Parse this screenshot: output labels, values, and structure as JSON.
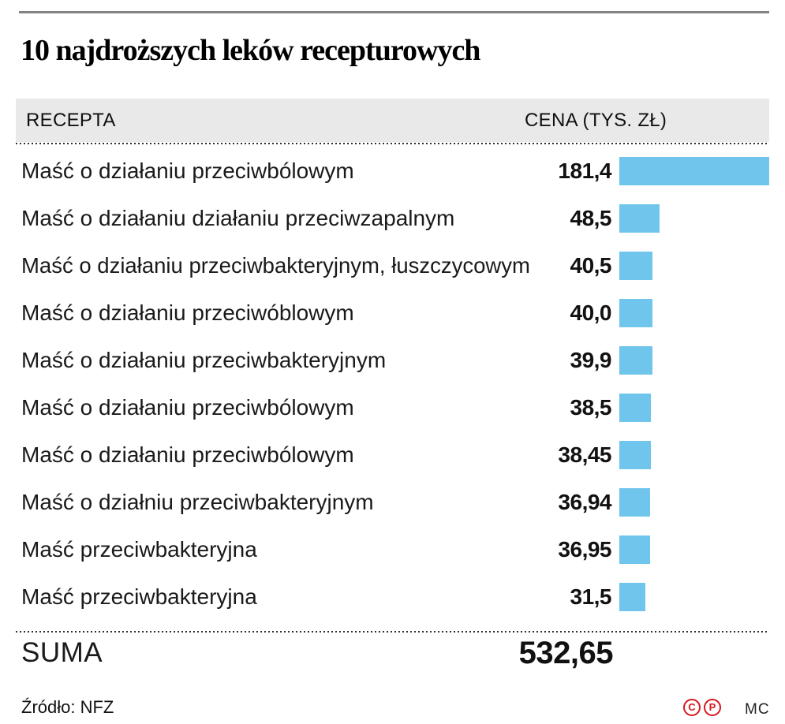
{
  "title": "10 najdroższych leków recepturowych",
  "table": {
    "col_recepta": "RECEPTA",
    "col_cena": "CENA (TYS. ZŁ)",
    "rows": [
      {
        "label": "Maść o działaniu przeciwbólowym",
        "value": "181,4",
        "num": 181.4
      },
      {
        "label": "Maść o działaniu działaniu przeciwzapalnym",
        "value": "48,5",
        "num": 48.5
      },
      {
        "label": "Maść o działaniu przeciwbakteryjnym, łuszczycowym",
        "value": "40,5",
        "num": 40.5
      },
      {
        "label": "Maść o działaniu przeciwóblowym",
        "value": "40,0",
        "num": 40.0
      },
      {
        "label": "Maść o działaniu przeciwbakteryjnym",
        "value": "39,9",
        "num": 39.9
      },
      {
        "label": "Maść o działaniu przeciwbólowym",
        "value": "38,5",
        "num": 38.5
      },
      {
        "label": "Maść o działaniu przeciwbólowym",
        "value": "38,45",
        "num": 38.45
      },
      {
        "label": "Maść o działniu przeciwbakteryjnym",
        "value": "36,94",
        "num": 36.94
      },
      {
        "label": "Maść przeciwbakteryjna",
        "value": "36,95",
        "num": 36.95
      },
      {
        "label": "Maść przeciwbakteryjna",
        "value": "31,5",
        "num": 31.5
      }
    ],
    "suma_label": "SUMA",
    "suma_value": "532,65"
  },
  "footer": {
    "source": "Źródło: NFZ",
    "copyright_c": "C",
    "copyright_p": "P",
    "credit": "MC"
  },
  "chart_data": {
    "type": "bar",
    "orientation": "horizontal",
    "title": "10 najdroższych leków recepturowych",
    "category_label": "RECEPTA",
    "value_label": "CENA (TYS. ZŁ)",
    "categories": [
      "Maść o działaniu przeciwbólowym",
      "Maść o działaniu działaniu przeciwzapalnym",
      "Maść o działaniu przeciwbakteryjnym, łuszczycowym",
      "Maść o działaniu przeciwóblowym",
      "Maść o działaniu przeciwbakteryjnym",
      "Maść o działaniu przeciwbólowym",
      "Maść o działaniu przeciwbólowym",
      "Maść o działniu przeciwbakteryjnym",
      "Maść przeciwbakteryjna",
      "Maść przeciwbakteryjna"
    ],
    "values": [
      181.4,
      48.5,
      40.5,
      40.0,
      39.9,
      38.5,
      38.45,
      36.94,
      36.95,
      31.5
    ],
    "total": 532.65,
    "xlim": [
      0,
      181.4
    ],
    "grid": false,
    "legend": false,
    "bar_color": "#6fc5ec",
    "source": "NFZ"
  }
}
